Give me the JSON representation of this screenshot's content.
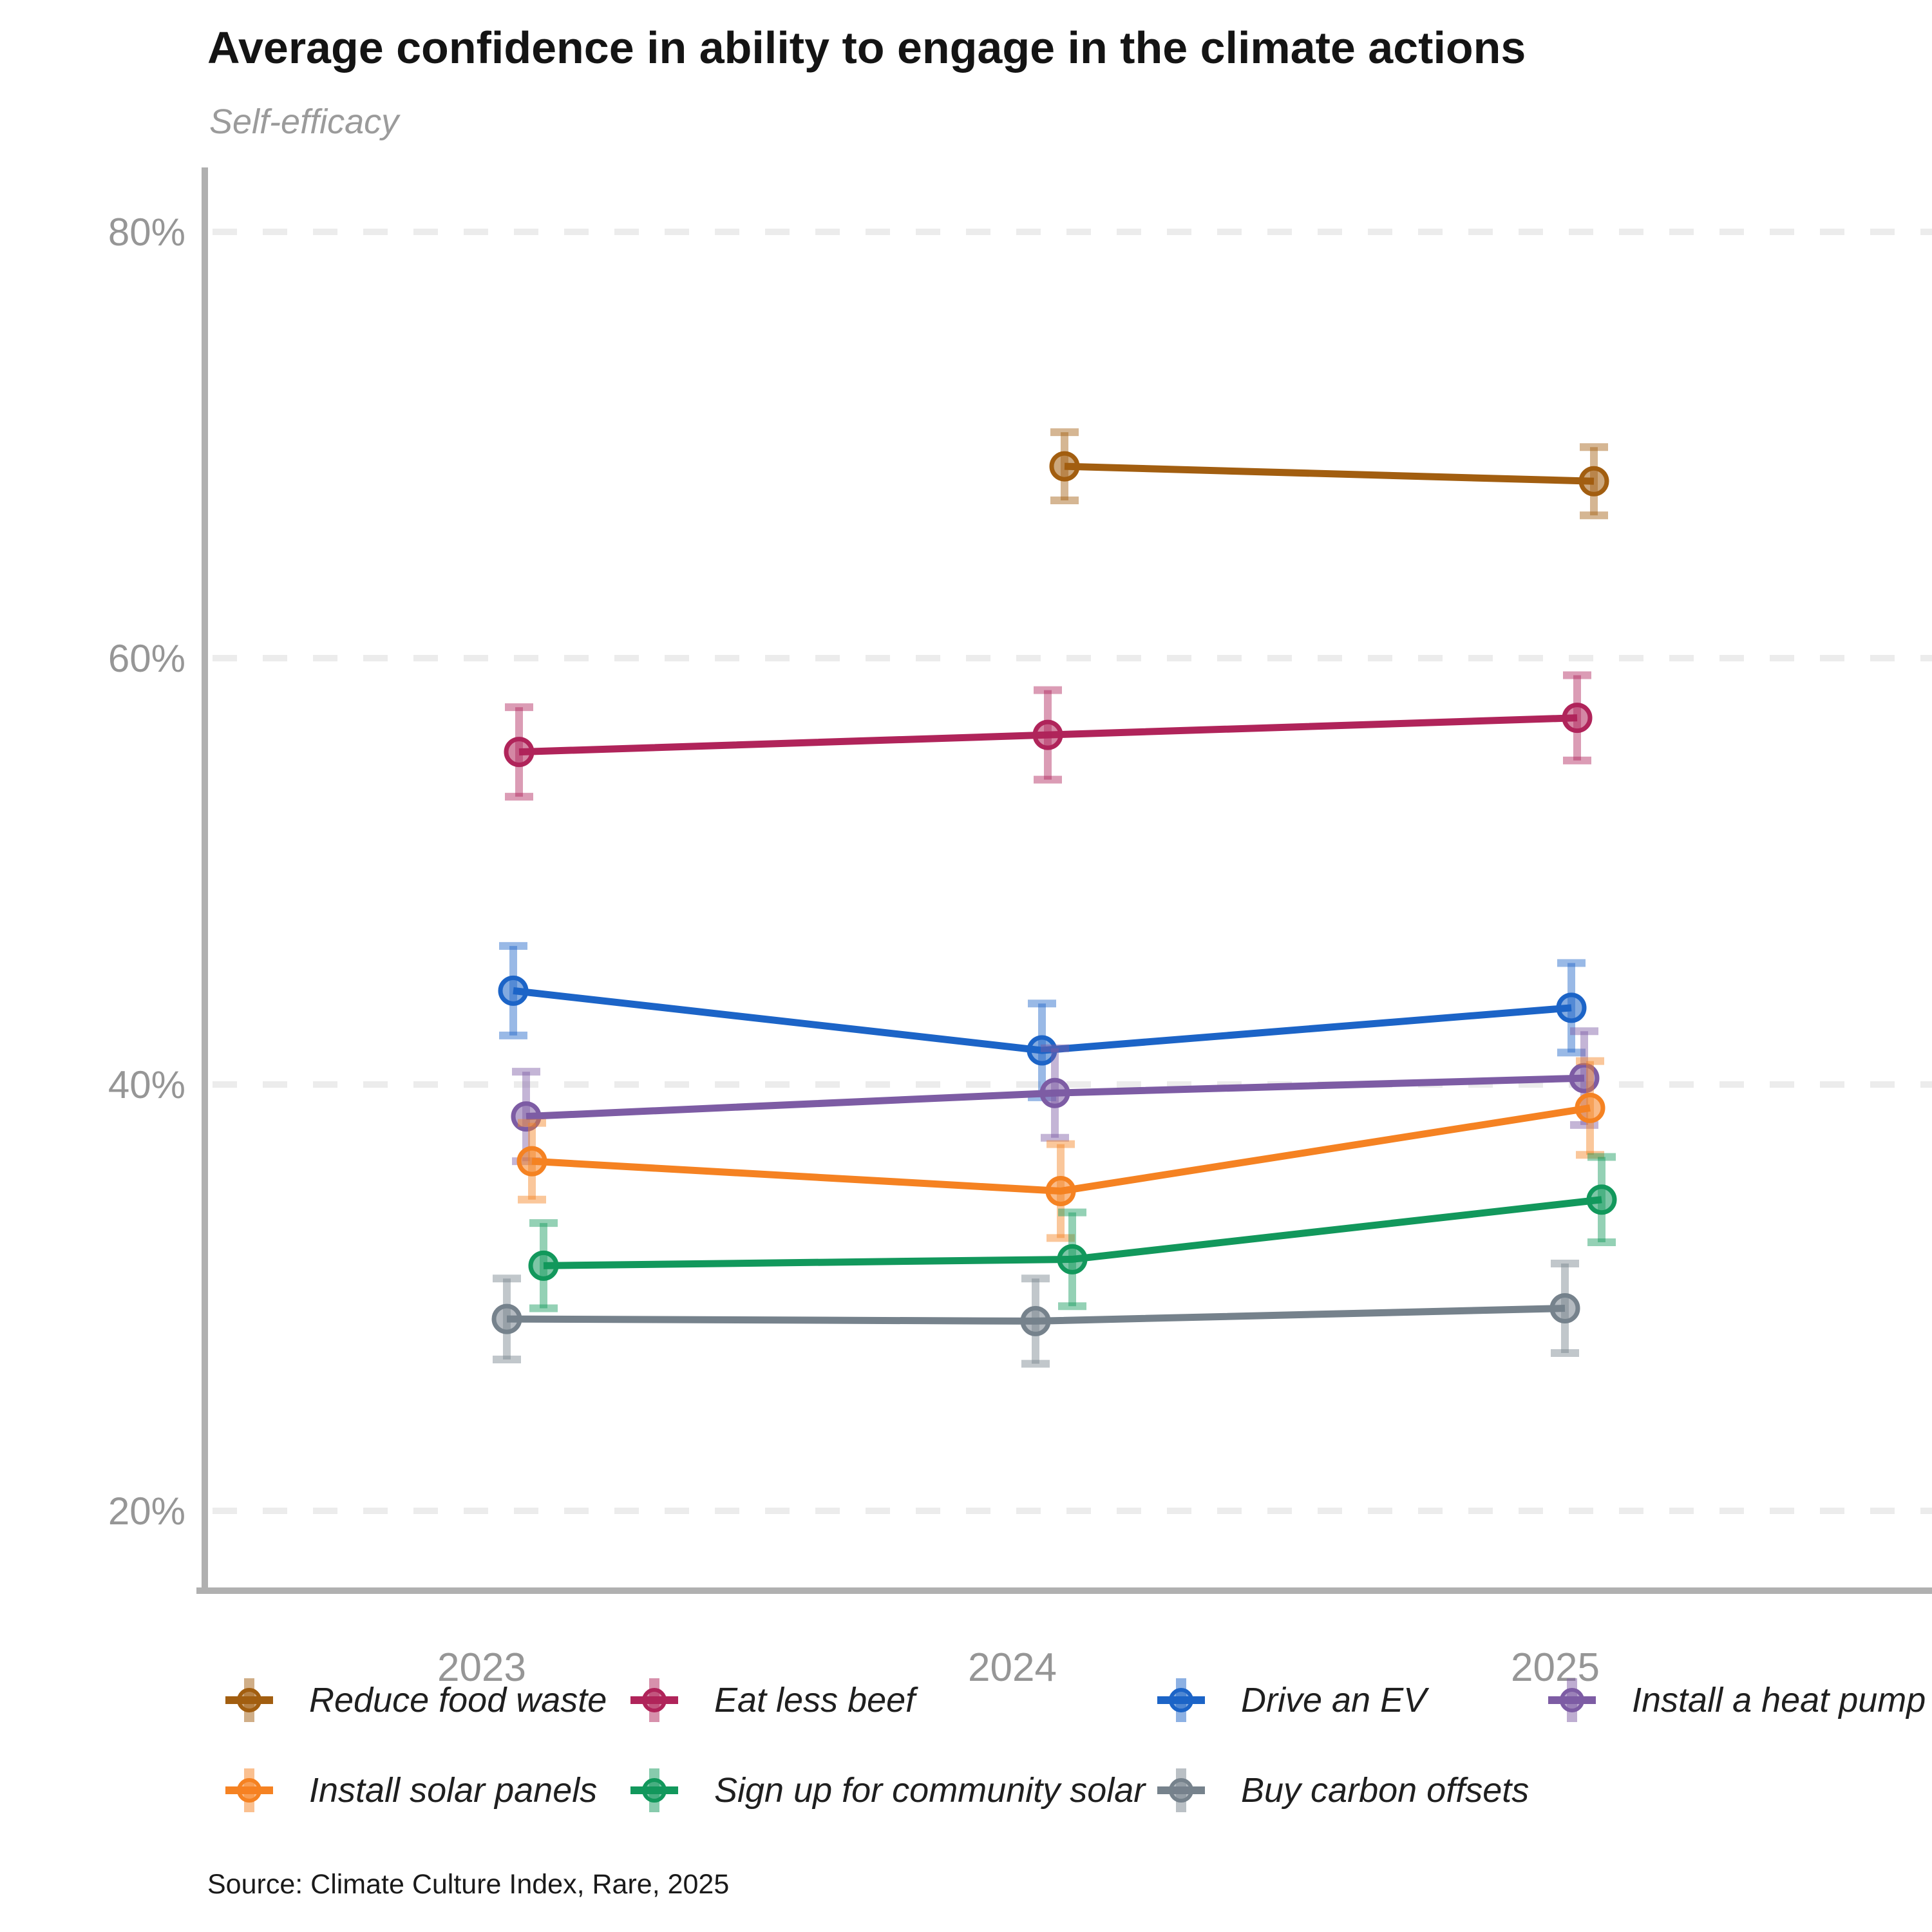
{
  "header": {
    "title": "Average confidence in ability to engage in the climate actions",
    "subtitle": "Self-efficacy"
  },
  "source": "Source: Climate Culture Index, Rare, 2025",
  "colors": {
    "axis": "#b0b0b0",
    "gridline": "#ececec",
    "tick_text": "#969696",
    "title_text": "#141414",
    "subtitle_text": "#9b9b9b"
  },
  "chart_data": {
    "type": "line",
    "variant": "points-with-error-bars",
    "title": "Average confidence in ability to engage in the climate actions",
    "subtitle": "Self-efficacy",
    "x": [
      "2023",
      "2024",
      "2025"
    ],
    "yticks": [
      {
        "value": 80,
        "label": "80%"
      },
      {
        "value": 60,
        "label": "60%"
      },
      {
        "value": 40,
        "label": "40%"
      },
      {
        "value": 20,
        "label": "20%"
      }
    ],
    "ylim": [
      16,
      83
    ],
    "grid": "horizontal-dashed",
    "legend_position": "bottom",
    "series": [
      {
        "name": "Reduce food waste",
        "color": "#a25e10",
        "values": [
          null,
          69.0,
          68.3
        ],
        "errors": [
          null,
          1.6,
          1.6
        ]
      },
      {
        "name": "Eat less beef",
        "color": "#b0245a",
        "values": [
          55.6,
          56.4,
          57.2
        ],
        "errors": [
          2.1,
          2.1,
          2.0
        ]
      },
      {
        "name": "Drive an EV",
        "color": "#1c64c7",
        "values": [
          44.4,
          41.6,
          43.6
        ],
        "errors": [
          2.1,
          2.2,
          2.1
        ]
      },
      {
        "name": "Install a heat pump",
        "color": "#7d5ca4",
        "values": [
          38.5,
          39.6,
          40.3
        ],
        "errors": [
          2.1,
          2.1,
          2.2
        ]
      },
      {
        "name": "Install solar panels",
        "color": "#f58222",
        "values": [
          36.4,
          35.0,
          38.9
        ],
        "errors": [
          1.8,
          2.2,
          2.2
        ]
      },
      {
        "name": "Sign up for community solar",
        "color": "#12985c",
        "values": [
          31.5,
          31.8,
          34.6
        ],
        "errors": [
          2.0,
          2.2,
          2.0
        ]
      },
      {
        "name": "Buy carbon offsets",
        "color": "#76828c",
        "values": [
          29.0,
          28.9,
          29.5
        ],
        "errors": [
          1.9,
          2.0,
          2.1
        ]
      }
    ]
  },
  "legend": {
    "rows": [
      [
        "Reduce food waste",
        "Eat less beef",
        "Drive an EV",
        "Install a heat pump"
      ],
      [
        "Install solar panels",
        "Sign up for community solar",
        "Buy carbon offsets"
      ]
    ]
  }
}
